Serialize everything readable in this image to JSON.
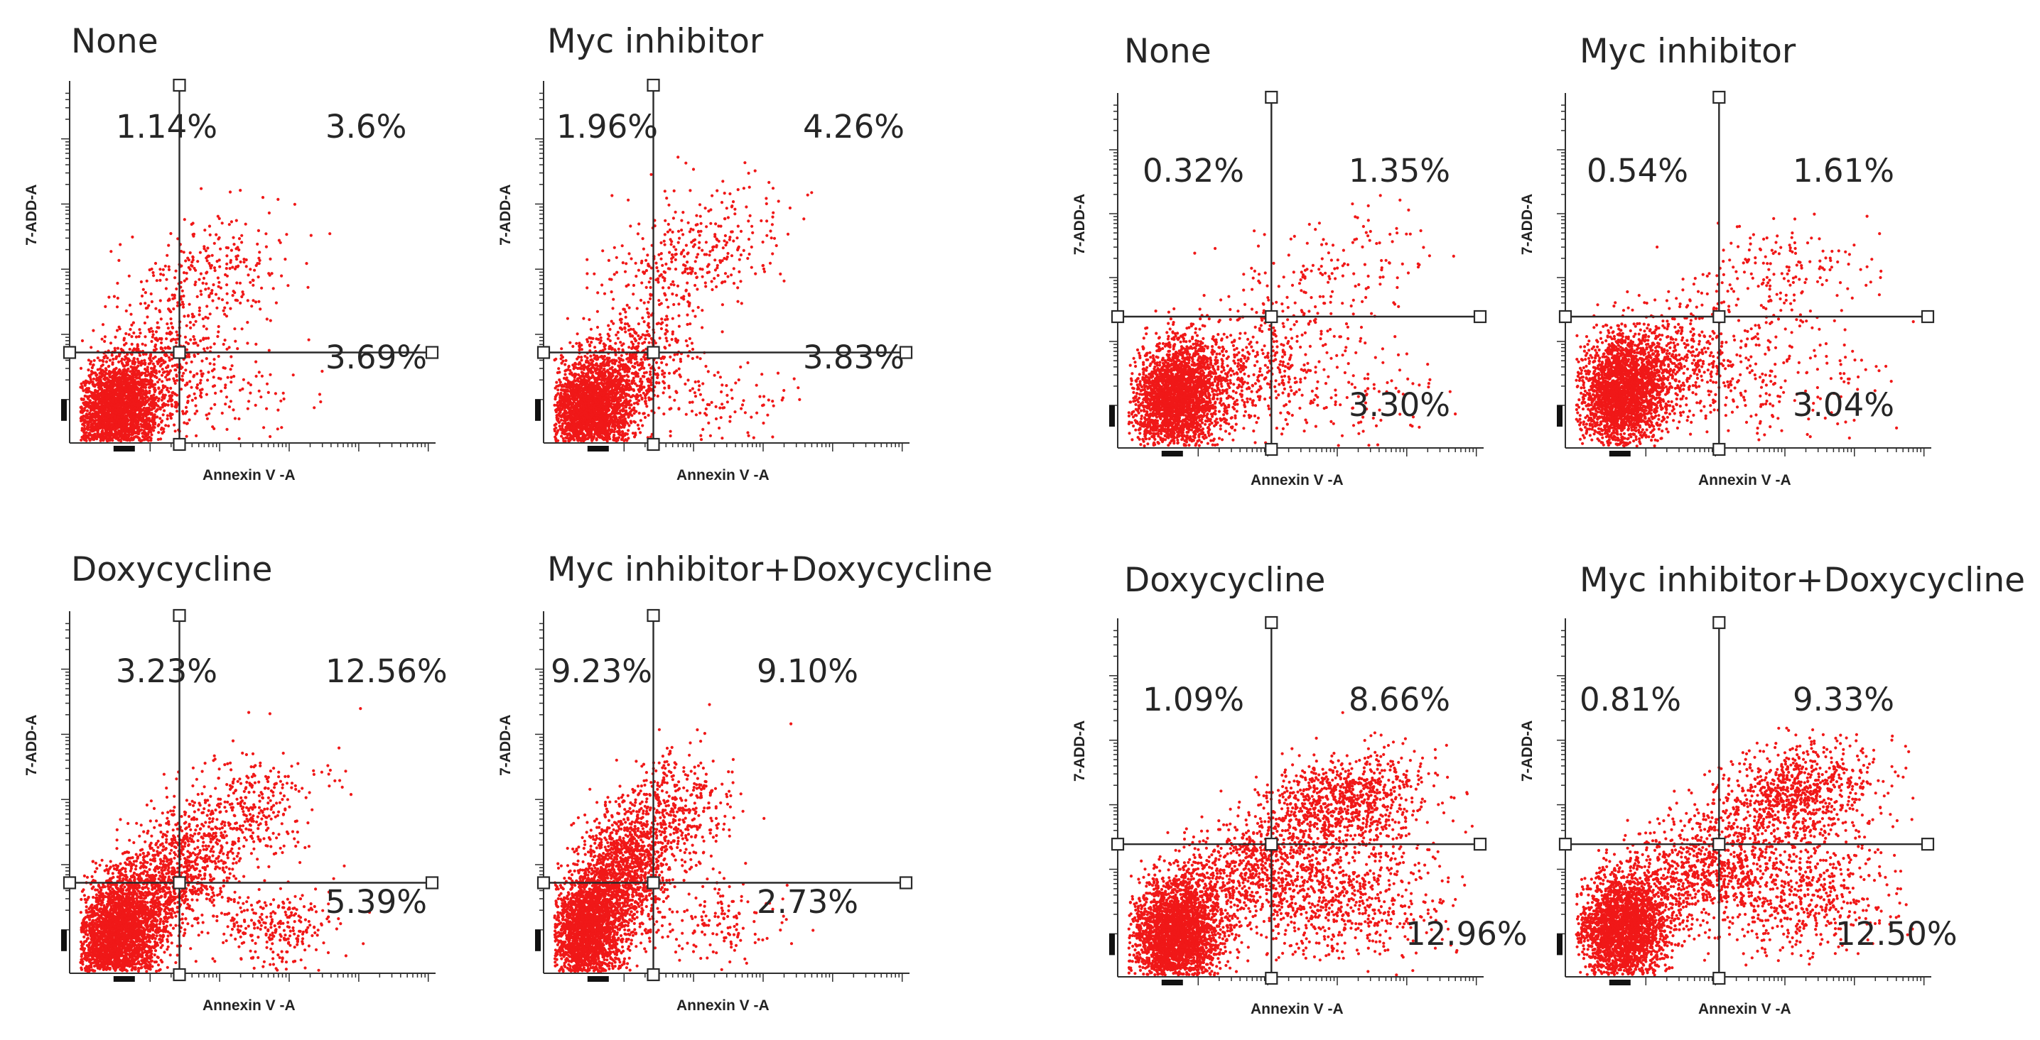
{
  "figure_title": "",
  "colors": {
    "dots": "#f01818",
    "axis": "#2f2f2f",
    "gate": "#2a2a2a",
    "text": "#262626"
  },
  "chart_data": [
    {
      "type": "scatter",
      "id": "A1",
      "title": "None",
      "xlabel": "Annexin V -A",
      "ylabel": "7-ADD-A",
      "quadrants": {
        "upper_left": "1.14%",
        "upper_right": "3.6%",
        "lower_right": "3.69%"
      },
      "gate": {
        "x": 0.3,
        "y": 0.25
      }
    },
    {
      "type": "scatter",
      "id": "A2",
      "title": "Myc inhibitor",
      "xlabel": "Annexin V -A",
      "ylabel": "7-ADD-A",
      "quadrants": {
        "upper_left": "1.96%",
        "upper_right": "4.26%",
        "lower_right": "3.83%"
      },
      "gate": {
        "x": 0.3,
        "y": 0.25
      }
    },
    {
      "type": "scatter",
      "id": "A3",
      "title": "Doxycycline",
      "xlabel": "Annexin V -A",
      "ylabel": "7-ADD-A",
      "quadrants": {
        "upper_left": "3.23%",
        "upper_right": "12.56%",
        "lower_right": "5.39%"
      },
      "gate": {
        "x": 0.3,
        "y": 0.25
      }
    },
    {
      "type": "scatter",
      "id": "A4",
      "title": "Myc inhibitor+Doxycycline",
      "xlabel": "Annexin V -A",
      "ylabel": "7-ADD-A",
      "quadrants": {
        "upper_left": "9.23%",
        "upper_right": "9.10%",
        "lower_right": "2.73%"
      },
      "gate": {
        "x": 0.3,
        "y": 0.25
      }
    },
    {
      "type": "scatter",
      "id": "B1",
      "title": "None",
      "xlabel": "Annexin V -A",
      "ylabel": "7-ADD-A",
      "quadrants": {
        "upper_left": "0.32%",
        "upper_right": "1.35%",
        "lower_right": "3.30%"
      },
      "gate": {
        "x": 0.42,
        "y": 0.37
      }
    },
    {
      "type": "scatter",
      "id": "B2",
      "title": "Myc inhibitor",
      "xlabel": "Annexin V -A",
      "ylabel": "7-ADD-A",
      "quadrants": {
        "upper_left": "0.54%",
        "upper_right": "1.61%",
        "lower_right": "3.04%"
      },
      "gate": {
        "x": 0.42,
        "y": 0.37
      }
    },
    {
      "type": "scatter",
      "id": "B3",
      "title": "Doxycycline",
      "xlabel": "Annexin V -A",
      "ylabel": "7-ADD-A",
      "quadrants": {
        "upper_left": "1.09%",
        "upper_right": "8.66%",
        "lower_right": "12.96%"
      },
      "gate": {
        "x": 0.42,
        "y": 0.37
      }
    },
    {
      "type": "scatter",
      "id": "B4",
      "title": "Myc inhibitor+Doxycycline",
      "xlabel": "Annexin V -A",
      "ylabel": "7-ADD-A",
      "quadrants": {
        "upper_left": "0.81%",
        "upper_right": "9.33%",
        "lower_right": "12.50%"
      },
      "gate": {
        "x": 0.42,
        "y": 0.37
      }
    }
  ]
}
